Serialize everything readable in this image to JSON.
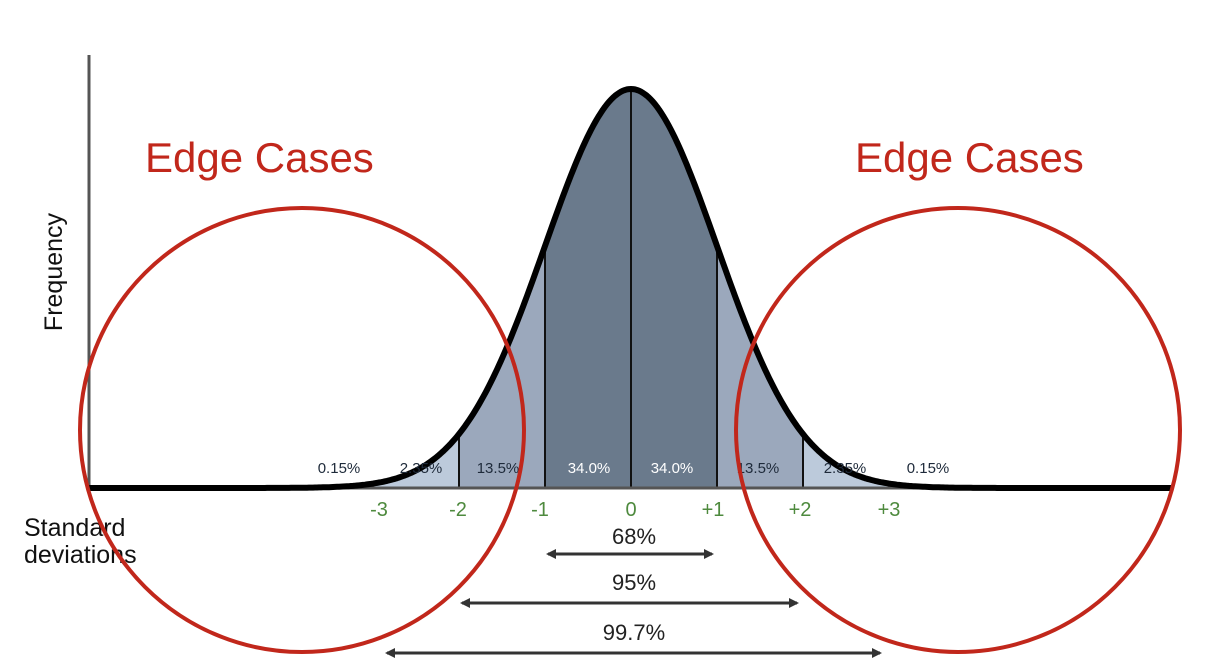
{
  "diagram": {
    "y_axis_label": "Frequency",
    "x_axis_label_line1": "Standard",
    "x_axis_label_line2": "deviations",
    "callout_left": "Edge Cases",
    "callout_right": "Edge Cases",
    "segments": [
      {
        "label": "0.15%",
        "color": "#dbe6f1"
      },
      {
        "label": "2.35%",
        "color": "#bccadb"
      },
      {
        "label": "13.5%",
        "color": "#9ba8bc"
      },
      {
        "label": "34.0%",
        "color": "#6a7a8c"
      },
      {
        "label": "34.0%",
        "color": "#6a7a8c"
      },
      {
        "label": "13.5%",
        "color": "#9ba8bc"
      },
      {
        "label": "2.35%",
        "color": "#bccadb"
      },
      {
        "label": "0.15%",
        "color": "#dbe6f1"
      }
    ],
    "ticks": [
      "-3",
      "-2",
      "-1",
      "0",
      "+1",
      "+2",
      "+3"
    ],
    "ranges": [
      {
        "label": "68%",
        "from": -1,
        "to": 1
      },
      {
        "label": "95%",
        "from": -2,
        "to": 2
      },
      {
        "label": "99.7%",
        "from": -3,
        "to": 3
      }
    ],
    "colors": {
      "curve": "#000000",
      "callout": "#c1271b",
      "tick": "#4e8a3e",
      "arrow": "#333333"
    }
  }
}
